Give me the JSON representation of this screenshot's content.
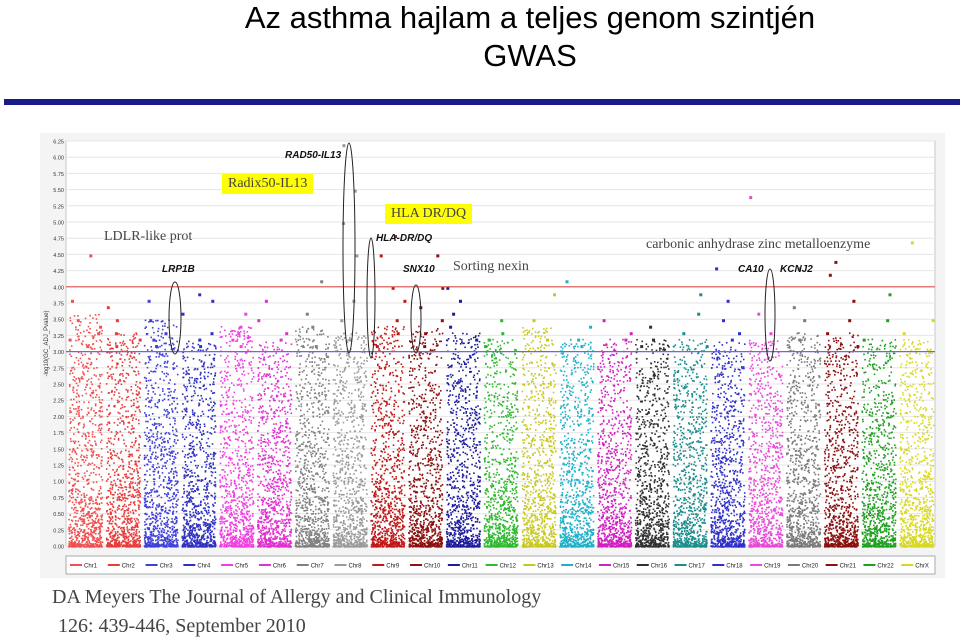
{
  "title": {
    "line1": "Az asthma hajlam a teljes genom szintjén",
    "line2": "GWAS"
  },
  "annotations": {
    "ldlr": "LDLR-like prot",
    "radix": "Radix50-IL13",
    "hla": "HLA DR/DQ",
    "sorting": "Sorting nexin",
    "carbonic": "carbonic anhydrase zinc metalloenzyme"
  },
  "genes": {
    "lrp1b": "LRP1B",
    "rad50": "RAD50-IL13",
    "hla_drdq": "HLA-DR/DQ",
    "snx10": "SNX10",
    "ca10": "CA10",
    "kcnj2": "KCNJ2"
  },
  "citation": {
    "line1": "DA Meyers The Journal of Allergy and Clinical Immunology",
    "line2": "126: 439-446, September 2010"
  },
  "colors": {
    "title_rule": "#1a1a8c",
    "highlight": "#ffff00",
    "red_threshold": "#e05050",
    "blue_threshold": "#6a6ae0"
  },
  "chart_data": {
    "type": "scatter",
    "title": "",
    "xlabel": "",
    "ylabel": "-log10(GC_ADJ_Pvalue)",
    "ylim": [
      0,
      6.25
    ],
    "yticks": [
      "6.25",
      "6.00",
      "5.75",
      "5.50",
      "5.25",
      "5.00",
      "4.75",
      "4.50",
      "4.25",
      "4.00",
      "3.75",
      "3.50",
      "3.25",
      "3.00",
      "2.75",
      "2.50",
      "2.25",
      "2.00",
      "1.75",
      "1.50",
      "1.25",
      "1.00",
      "0.75",
      "0.50",
      "0.25",
      "0.00"
    ],
    "thresholds": [
      4.0,
      3.0
    ],
    "legend_position": "bottom",
    "chromosomes": [
      {
        "name": "Chr1",
        "color": "#f05050",
        "top": 3.6,
        "peaks": [
          4.5,
          3.5,
          3.4,
          3.3,
          3.2,
          3.8,
          3.1
        ]
      },
      {
        "name": "Chr2",
        "color": "#e63c3c",
        "top": 3.3,
        "peaks": [
          3.7,
          3.5,
          3.3,
          3.2,
          3.1
        ]
      },
      {
        "name": "Chr3",
        "color": "#4040d8",
        "top": 3.5,
        "peaks": [
          3.8,
          3.3,
          3.2,
          3.1,
          3.5
        ]
      },
      {
        "name": "Chr4",
        "color": "#3030c0",
        "top": 3.2,
        "peaks": [
          3.9,
          3.6,
          3.3,
          3.2,
          3.8,
          3.1
        ]
      },
      {
        "name": "Chr5",
        "color": "#f040e0",
        "top": 3.4,
        "peaks": [
          3.6,
          3.4,
          3.2,
          3.1,
          3.3
        ]
      },
      {
        "name": "Chr6",
        "color": "#e030d0",
        "top": 3.2,
        "peaks": [
          3.8,
          3.5,
          3.2,
          3.3
        ]
      },
      {
        "name": "Chr7",
        "color": "#808080",
        "top": 3.4,
        "peaks": [
          4.1,
          3.6,
          3.4,
          3.1
        ]
      },
      {
        "name": "Chr8",
        "color": "#9a9a9a",
        "top": 3.3,
        "peaks": [
          6.2,
          5.5,
          5.0,
          4.5,
          3.8,
          3.5,
          3.2
        ]
      },
      {
        "name": "Chr9",
        "color": "#c01818",
        "top": 3.4,
        "peaks": [
          4.8,
          4.5,
          4.0,
          3.8,
          3.5,
          3.3,
          3.1
        ]
      },
      {
        "name": "Chr10",
        "color": "#8c1010",
        "top": 3.4,
        "peaks": [
          4.5,
          4.0,
          3.7,
          3.5,
          3.3,
          3.1
        ]
      },
      {
        "name": "Chr11",
        "color": "#1c1c9c",
        "top": 3.3,
        "peaks": [
          4.0,
          3.8,
          3.6,
          3.4,
          3.2
        ]
      },
      {
        "name": "Chr12",
        "color": "#30b830",
        "top": 3.2,
        "peaks": [
          3.5,
          3.3,
          3.2,
          3.1
        ]
      },
      {
        "name": "Chr13",
        "color": "#c8c820",
        "top": 3.4,
        "peaks": [
          3.9,
          3.5,
          3.2
        ]
      },
      {
        "name": "Chr14",
        "color": "#20b0c8",
        "top": 3.2,
        "peaks": [
          4.1,
          3.4,
          3.2,
          3.1
        ]
      },
      {
        "name": "Chr15",
        "color": "#d020c0",
        "top": 3.2,
        "peaks": [
          3.5,
          3.3,
          3.2
        ]
      },
      {
        "name": "Chr16",
        "color": "#303030",
        "top": 3.2,
        "peaks": [
          3.4,
          3.2,
          3.1
        ]
      },
      {
        "name": "Chr17",
        "color": "#1c8c8c",
        "top": 3.2,
        "peaks": [
          3.9,
          3.6,
          3.3,
          3.1
        ]
      },
      {
        "name": "Chr18",
        "color": "#3030c8",
        "top": 3.2,
        "peaks": [
          4.3,
          3.8,
          3.5,
          3.3,
          3.2
        ]
      },
      {
        "name": "Chr19",
        "color": "#e84ad8",
        "top": 3.2,
        "peaks": [
          5.4,
          3.6,
          3.3
        ]
      },
      {
        "name": "Chr20",
        "color": "#7a7a7a",
        "top": 3.3,
        "peaks": [
          4.3,
          3.7,
          3.5,
          3.2
        ]
      },
      {
        "name": "Chr21",
        "color": "#8c1010",
        "top": 3.3,
        "peaks": [
          4.4,
          4.2,
          3.8,
          3.5,
          3.3,
          3.1
        ]
      },
      {
        "name": "Chr22",
        "color": "#20a020",
        "top": 3.2,
        "peaks": [
          3.9,
          3.5,
          3.2
        ]
      },
      {
        "name": "ChrX",
        "color": "#d8d820",
        "top": 3.2,
        "peaks": [
          4.7,
          3.5,
          3.3
        ]
      }
    ]
  }
}
